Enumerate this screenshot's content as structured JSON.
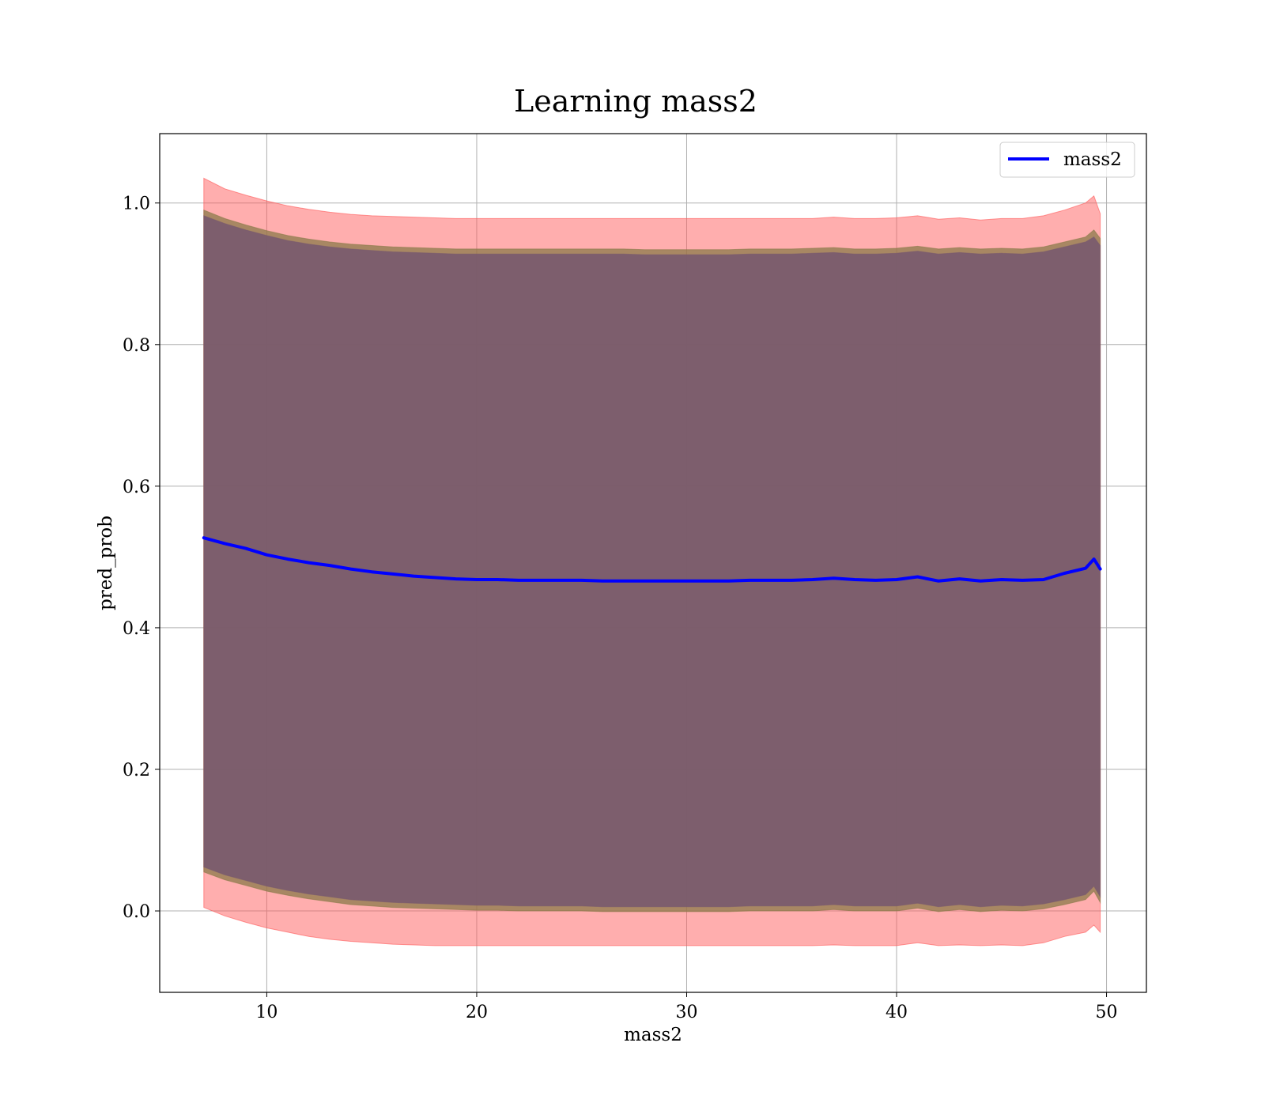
{
  "chart_data": {
    "type": "line",
    "title": "Learning mass2",
    "xlabel": "mass2",
    "ylabel": "pred_prob",
    "xlim": [
      4.9,
      51.9
    ],
    "ylim": [
      -0.115,
      1.098
    ],
    "xticks": [
      10,
      20,
      30,
      40,
      50
    ],
    "yticks": [
      0.0,
      0.2,
      0.4,
      0.6,
      0.8,
      1.0
    ],
    "xtick_labels": [
      "10",
      "20",
      "30",
      "40",
      "50"
    ],
    "ytick_labels": [
      "0.0",
      "0.2",
      "0.4",
      "0.6",
      "0.8",
      "1.0"
    ],
    "grid": true,
    "legend_position": "top-right",
    "series": [
      {
        "name": "mass2",
        "color": "#0000ff",
        "x": [
          7,
          8,
          9,
          10,
          11,
          12,
          13,
          14,
          15,
          16,
          17,
          18,
          19,
          20,
          21,
          22,
          23,
          24,
          25,
          26,
          27,
          28,
          29,
          30,
          31,
          32,
          33,
          34,
          35,
          36,
          37,
          38,
          39,
          40,
          41,
          42,
          43,
          44,
          45,
          46,
          47,
          48,
          49,
          49.4,
          49.7
        ],
        "y": [
          0.527,
          0.519,
          0.512,
          0.503,
          0.497,
          0.492,
          0.488,
          0.483,
          0.479,
          0.476,
          0.473,
          0.471,
          0.469,
          0.468,
          0.468,
          0.467,
          0.467,
          0.467,
          0.467,
          0.466,
          0.466,
          0.466,
          0.466,
          0.466,
          0.466,
          0.466,
          0.467,
          0.467,
          0.467,
          0.468,
          0.47,
          0.468,
          0.467,
          0.468,
          0.472,
          0.466,
          0.469,
          0.466,
          0.468,
          0.467,
          0.468,
          0.477,
          0.484,
          0.497,
          0.483
        ]
      }
    ],
    "bands": [
      {
        "color": "#ff5555",
        "opacity": 0.48,
        "upper": [
          1.035,
          1.02,
          1.011,
          1.003,
          0.996,
          0.991,
          0.987,
          0.984,
          0.982,
          0.981,
          0.98,
          0.979,
          0.978,
          0.978,
          0.978,
          0.978,
          0.978,
          0.978,
          0.978,
          0.978,
          0.978,
          0.978,
          0.978,
          0.978,
          0.978,
          0.978,
          0.978,
          0.978,
          0.978,
          0.978,
          0.98,
          0.978,
          0.978,
          0.979,
          0.982,
          0.977,
          0.979,
          0.976,
          0.978,
          0.978,
          0.982,
          0.99,
          1.0,
          1.01,
          0.985
        ],
        "lower": [
          0.005,
          -0.007,
          -0.016,
          -0.024,
          -0.03,
          -0.036,
          -0.04,
          -0.043,
          -0.045,
          -0.047,
          -0.048,
          -0.049,
          -0.049,
          -0.049,
          -0.049,
          -0.049,
          -0.049,
          -0.049,
          -0.049,
          -0.049,
          -0.049,
          -0.049,
          -0.049,
          -0.049,
          -0.049,
          -0.049,
          -0.049,
          -0.049,
          -0.049,
          -0.049,
          -0.048,
          -0.049,
          -0.049,
          -0.049,
          -0.045,
          -0.049,
          -0.048,
          -0.049,
          -0.048,
          -0.049,
          -0.045,
          -0.036,
          -0.03,
          -0.02,
          -0.03
        ]
      },
      {
        "color": "#8b7a4a",
        "opacity": 0.75,
        "upper": [
          0.99,
          0.978,
          0.969,
          0.961,
          0.954,
          0.949,
          0.945,
          0.942,
          0.94,
          0.938,
          0.937,
          0.936,
          0.935,
          0.935,
          0.935,
          0.935,
          0.935,
          0.935,
          0.935,
          0.935,
          0.935,
          0.934,
          0.934,
          0.934,
          0.934,
          0.934,
          0.935,
          0.935,
          0.935,
          0.936,
          0.937,
          0.935,
          0.935,
          0.936,
          0.939,
          0.935,
          0.937,
          0.935,
          0.936,
          0.935,
          0.938,
          0.945,
          0.952,
          0.962,
          0.95
        ],
        "lower": [
          0.055,
          0.044,
          0.036,
          0.028,
          0.022,
          0.017,
          0.013,
          0.009,
          0.007,
          0.005,
          0.004,
          0.003,
          0.002,
          0.001,
          0.001,
          0.0,
          0.0,
          0.0,
          0.0,
          -0.001,
          -0.001,
          -0.001,
          -0.001,
          -0.001,
          -0.001,
          -0.001,
          0.0,
          0.0,
          0.0,
          0.0,
          0.002,
          0.0,
          0.0,
          0.0,
          0.004,
          -0.001,
          0.002,
          -0.001,
          0.001,
          0.0,
          0.003,
          0.009,
          0.016,
          0.028,
          0.012
        ]
      },
      {
        "color": "#7a5a6e",
        "opacity": 0.92,
        "upper": [
          0.982,
          0.971,
          0.962,
          0.954,
          0.947,
          0.942,
          0.938,
          0.935,
          0.933,
          0.931,
          0.93,
          0.929,
          0.928,
          0.928,
          0.928,
          0.928,
          0.928,
          0.928,
          0.928,
          0.928,
          0.928,
          0.927,
          0.927,
          0.927,
          0.927,
          0.927,
          0.928,
          0.928,
          0.928,
          0.929,
          0.93,
          0.928,
          0.928,
          0.929,
          0.932,
          0.928,
          0.93,
          0.928,
          0.929,
          0.928,
          0.931,
          0.938,
          0.945,
          0.952,
          0.94
        ],
        "lower": [
          0.062,
          0.051,
          0.043,
          0.035,
          0.029,
          0.024,
          0.02,
          0.016,
          0.014,
          0.012,
          0.011,
          0.01,
          0.009,
          0.008,
          0.008,
          0.007,
          0.007,
          0.007,
          0.007,
          0.006,
          0.006,
          0.006,
          0.006,
          0.006,
          0.006,
          0.006,
          0.007,
          0.007,
          0.007,
          0.007,
          0.009,
          0.007,
          0.007,
          0.007,
          0.011,
          0.006,
          0.009,
          0.006,
          0.008,
          0.007,
          0.01,
          0.016,
          0.023,
          0.035,
          0.02
        ]
      }
    ]
  }
}
